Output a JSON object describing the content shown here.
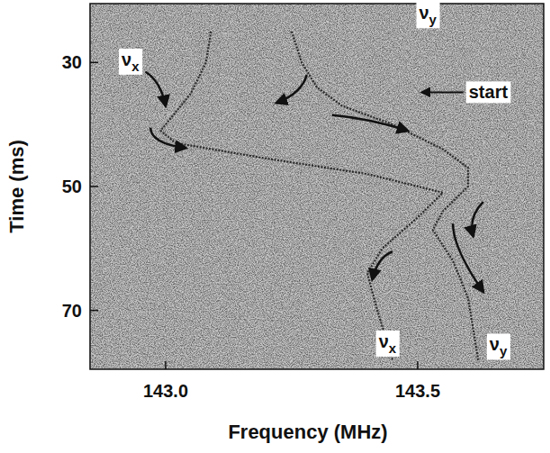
{
  "chart_data": {
    "type": "line",
    "xlabel": "Frequency (MHz)",
    "ylabel": "Time (ms)",
    "xlim": [
      142.85,
      143.75
    ],
    "ylim": [
      20.5,
      79.5
    ],
    "xticks": [
      {
        "value": 143.0,
        "label": "143.0"
      },
      {
        "value": 143.5,
        "label": "143.5"
      }
    ],
    "yticks": [
      30,
      50,
      70
    ],
    "series": [
      {
        "color": "#2a2a2a",
        "line_style": "dotted",
        "x": [
          143.09,
          143.08,
          143.05,
          143.01,
          142.99,
          143.02,
          143.2,
          143.4,
          143.55,
          143.5,
          143.43,
          143.4,
          143.42,
          143.45
        ],
        "values": [
          25,
          30,
          35,
          39,
          41,
          43,
          45.5,
          48,
          51,
          55,
          60,
          64,
          70,
          78
        ]
      },
      {
        "color": "#2a2a2a",
        "line_style": "dotted",
        "x": [
          143.25,
          143.27,
          143.3,
          143.35,
          143.45,
          143.55,
          143.6,
          143.6,
          143.55,
          143.53,
          143.57,
          143.6,
          143.62
        ],
        "values": [
          25,
          30,
          34,
          37,
          40,
          44,
          47,
          50,
          54,
          57,
          62,
          68,
          78
        ]
      }
    ],
    "annotations": [
      {
        "text": "νx",
        "x": 142.93,
        "y": 29.5
      },
      {
        "text": "νy",
        "x": 143.52,
        "y": 22
      },
      {
        "text": "start",
        "x": 143.64,
        "y": 34.8
      },
      {
        "text": "νx",
        "x": 143.44,
        "y": 75
      },
      {
        "text": "νy",
        "x": 143.66,
        "y": 75.5
      }
    ]
  }
}
